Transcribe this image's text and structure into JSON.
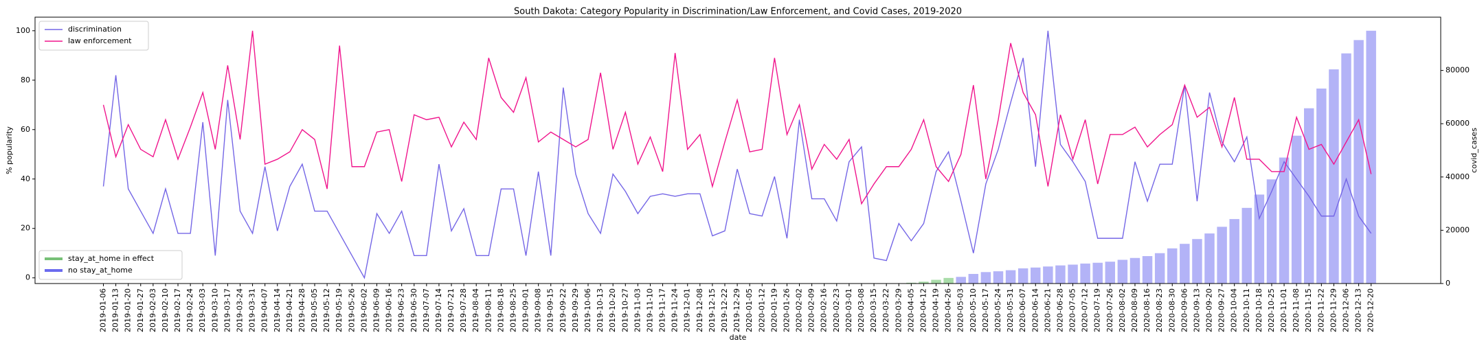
{
  "chart_data": {
    "type": "combo",
    "title": "South Dakota: Category Popularity in Discrimination/Law Enforcement, and Covid Cases, 2019-2020",
    "xlabel": "date",
    "ylabel": "% popularity",
    "y2label": "covid_cases",
    "categories": [
      "2019-01-06",
      "2019-01-13",
      "2019-01-20",
      "2019-01-27",
      "2019-02-03",
      "2019-02-10",
      "2019-02-17",
      "2019-02-24",
      "2019-03-03",
      "2019-03-10",
      "2019-03-17",
      "2019-03-24",
      "2019-03-31",
      "2019-04-07",
      "2019-04-14",
      "2019-04-21",
      "2019-04-28",
      "2019-05-05",
      "2019-05-12",
      "2019-05-19",
      "2019-05-26",
      "2019-06-02",
      "2019-06-09",
      "2019-06-16",
      "2019-06-23",
      "2019-06-30",
      "2019-07-07",
      "2019-07-14",
      "2019-07-21",
      "2019-07-28",
      "2019-08-04",
      "2019-08-11",
      "2019-08-18",
      "2019-08-25",
      "2019-09-01",
      "2019-09-08",
      "2019-09-15",
      "2019-09-22",
      "2019-09-29",
      "2019-10-06",
      "2019-10-13",
      "2019-10-20",
      "2019-10-27",
      "2019-11-03",
      "2019-11-10",
      "2019-11-17",
      "2019-11-24",
      "2019-12-01",
      "2019-12-08",
      "2019-12-15",
      "2019-12-22",
      "2019-12-29",
      "2020-01-05",
      "2020-01-12",
      "2020-01-19",
      "2020-01-26",
      "2020-02-02",
      "2020-02-09",
      "2020-02-16",
      "2020-02-23",
      "2020-03-01",
      "2020-03-08",
      "2020-03-15",
      "2020-03-22",
      "2020-03-29",
      "2020-04-05",
      "2020-04-12",
      "2020-04-19",
      "2020-04-26",
      "2020-05-03",
      "2020-05-10",
      "2020-05-17",
      "2020-05-24",
      "2020-05-31",
      "2020-06-07",
      "2020-06-14",
      "2020-06-21",
      "2020-06-28",
      "2020-07-05",
      "2020-07-12",
      "2020-07-19",
      "2020-07-26",
      "2020-08-02",
      "2020-08-09",
      "2020-08-16",
      "2020-08-23",
      "2020-08-30",
      "2020-09-06",
      "2020-09-13",
      "2020-09-20",
      "2020-09-27",
      "2020-10-04",
      "2020-10-11",
      "2020-10-18",
      "2020-10-25",
      "2020-11-01",
      "2020-11-08",
      "2020-11-15",
      "2020-11-22",
      "2020-11-29",
      "2020-12-06",
      "2020-12-13",
      "2020-12-20"
    ],
    "ylim": [
      -2.3,
      105.5
    ],
    "yticks": [
      0,
      20,
      40,
      60,
      80,
      100
    ],
    "y2lim": [
      0,
      100000
    ],
    "y2ticks": [
      0,
      20000,
      40000,
      60000,
      80000
    ],
    "legend": "upper left",
    "legend2_loc": "lower left",
    "series": [
      {
        "name": "discrimination",
        "type": "line",
        "color": "#7466e6",
        "values": [
          37,
          82,
          36,
          27,
          18,
          36,
          18,
          18,
          63,
          9,
          72,
          27,
          18,
          45,
          19,
          37,
          46,
          27,
          27,
          18,
          9,
          0,
          26,
          18,
          27,
          9,
          9,
          46,
          19,
          28,
          9,
          9,
          36,
          36,
          9,
          43,
          9,
          77,
          42,
          26,
          18,
          42,
          35,
          26,
          33,
          34,
          33,
          34,
          34,
          17,
          19,
          44,
          26,
          25,
          41,
          16,
          64,
          32,
          32,
          23,
          47,
          53,
          8,
          7,
          22,
          15,
          22,
          43,
          51,
          31,
          10,
          38,
          52,
          71,
          89,
          45,
          100,
          54,
          47,
          39,
          16,
          16,
          16,
          47,
          31,
          46,
          46,
          78,
          31,
          75,
          55,
          47,
          57,
          24,
          35,
          47,
          40,
          33,
          25,
          25,
          40,
          25,
          18
        ]
      },
      {
        "name": "law enforcement",
        "type": "line",
        "color": "#f0148c",
        "values": [
          70,
          49,
          62,
          52,
          49,
          64,
          48,
          61,
          75,
          52,
          86,
          56,
          100,
          46,
          48,
          51,
          60,
          56,
          36,
          94,
          45,
          45,
          59,
          60,
          39,
          66,
          64,
          65,
          53,
          63,
          56,
          89,
          73,
          67,
          81,
          55,
          59,
          56,
          53,
          56,
          83,
          52,
          67,
          46,
          57,
          43,
          91,
          52,
          58,
          37,
          55,
          72,
          51,
          52,
          89,
          58,
          70,
          44,
          54,
          48,
          56,
          30,
          38,
          45,
          45,
          52,
          64,
          45,
          39,
          50,
          78,
          40,
          64,
          95,
          75,
          66,
          37,
          66,
          48,
          64,
          38,
          58,
          58,
          61,
          53,
          58,
          62,
          78,
          65,
          69,
          53,
          73,
          48,
          48,
          43,
          43,
          65,
          52,
          54,
          46,
          55,
          64,
          42
        ]
      },
      {
        "type": "bar",
        "axis": "y2",
        "values": [
          0,
          0,
          0,
          0,
          0,
          0,
          0,
          0,
          0,
          0,
          0,
          0,
          0,
          0,
          0,
          0,
          0,
          0,
          0,
          0,
          0,
          0,
          0,
          0,
          0,
          0,
          0,
          0,
          0,
          0,
          0,
          0,
          0,
          0,
          0,
          0,
          0,
          0,
          0,
          0,
          0,
          0,
          0,
          0,
          0,
          0,
          0,
          0,
          0,
          0,
          0,
          0,
          0,
          0,
          0,
          0,
          0,
          0,
          0,
          0,
          0,
          0,
          0,
          30,
          100,
          300,
          700,
          1400,
          2100,
          2500,
          3600,
          4300,
          4600,
          5000,
          5700,
          6000,
          6400,
          6800,
          7100,
          7500,
          7800,
          8200,
          8900,
          9600,
          10300,
          11400,
          13200,
          14900,
          16700,
          18800,
          21300,
          24200,
          28400,
          33400,
          39100,
          47300,
          55500,
          65800,
          73200,
          80400,
          86400,
          91400,
          94900
        ],
        "colors": [
          "#b3b3f7",
          "#b3b3f7",
          "#b3b3f7",
          "#b3b3f7",
          "#b3b3f7",
          "#b3b3f7",
          "#b3b3f7",
          "#b3b3f7",
          "#b3b3f7",
          "#b3b3f7",
          "#b3b3f7",
          "#b3b3f7",
          "#b3b3f7",
          "#b3b3f7",
          "#b3b3f7",
          "#b3b3f7",
          "#b3b3f7",
          "#b3b3f7",
          "#b3b3f7",
          "#b3b3f7",
          "#b3b3f7",
          "#b3b3f7",
          "#b3b3f7",
          "#b3b3f7",
          "#b3b3f7",
          "#b3b3f7",
          "#b3b3f7",
          "#b3b3f7",
          "#b3b3f7",
          "#b3b3f7",
          "#b3b3f7",
          "#b3b3f7",
          "#b3b3f7",
          "#b3b3f7",
          "#b3b3f7",
          "#b3b3f7",
          "#b3b3f7",
          "#b3b3f7",
          "#b3b3f7",
          "#b3b3f7",
          "#b3b3f7",
          "#b3b3f7",
          "#b3b3f7",
          "#b3b3f7",
          "#b3b3f7",
          "#b3b3f7",
          "#b3b3f7",
          "#b3b3f7",
          "#b3b3f7",
          "#b3b3f7",
          "#b3b3f7",
          "#b3b3f7",
          "#b3b3f7",
          "#b3b3f7",
          "#b3b3f7",
          "#b3b3f7",
          "#b3b3f7",
          "#b3b3f7",
          "#b3b3f7",
          "#b3b3f7",
          "#b3b3f7",
          "#b3b3f7",
          "#b3b3f7",
          "#b3b3f7",
          "#b3b3f7",
          "#a9dca9",
          "#a9dca9",
          "#a9dca9",
          "#a9dca9",
          "#b3b3f7",
          "#b3b3f7",
          "#b3b3f7",
          "#b3b3f7",
          "#b3b3f7",
          "#b3b3f7",
          "#b3b3f7",
          "#b3b3f7",
          "#b3b3f7",
          "#b3b3f7",
          "#b3b3f7",
          "#b3b3f7",
          "#b3b3f7",
          "#b3b3f7",
          "#b3b3f7",
          "#b3b3f7",
          "#b3b3f7",
          "#b3b3f7",
          "#b3b3f7",
          "#b3b3f7",
          "#b3b3f7",
          "#b3b3f7",
          "#b3b3f7",
          "#b3b3f7",
          "#b3b3f7",
          "#b3b3f7",
          "#b3b3f7",
          "#b3b3f7",
          "#b3b3f7",
          "#b3b3f7",
          "#b3b3f7",
          "#b3b3f7",
          "#b3b3f7",
          "#b3b3f7"
        ]
      }
    ],
    "legend2": [
      {
        "name": "stay_at_home in effect",
        "color": "#77c077"
      },
      {
        "name": "no stay_at_home",
        "color": "#6b6bef"
      }
    ]
  }
}
